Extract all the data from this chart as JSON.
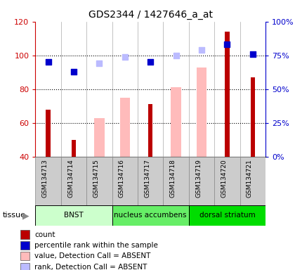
{
  "title": "GDS2344 / 1427646_a_at",
  "samples": [
    "GSM134713",
    "GSM134714",
    "GSM134715",
    "GSM134716",
    "GSM134717",
    "GSM134718",
    "GSM134719",
    "GSM134720",
    "GSM134721"
  ],
  "tissues": [
    {
      "label": "BNST",
      "start": 0,
      "end": 3,
      "color": "#ccffcc"
    },
    {
      "label": "nucleus accumbens",
      "start": 3,
      "end": 6,
      "color": "#66ee66"
    },
    {
      "label": "dorsal striatum",
      "start": 6,
      "end": 9,
      "color": "#00dd00"
    }
  ],
  "count_values": [
    68,
    50,
    null,
    null,
    71,
    null,
    null,
    114,
    87
  ],
  "rank_values": [
    70,
    63,
    null,
    null,
    70,
    null,
    null,
    83,
    76
  ],
  "absent_value_values": [
    null,
    null,
    63,
    75,
    null,
    81,
    93,
    null,
    null
  ],
  "absent_rank_values": [
    null,
    null,
    69,
    74,
    null,
    75,
    79,
    null,
    null
  ],
  "ylim_left": [
    40,
    120
  ],
  "ylim_right": [
    0,
    100
  ],
  "yticks_left": [
    40,
    60,
    80,
    100,
    120
  ],
  "yticks_right": [
    0,
    25,
    50,
    75,
    100
  ],
  "yticklabels_right": [
    "0%",
    "25%",
    "50%",
    "75%",
    "100%"
  ],
  "left_axis_color": "#cc0000",
  "right_axis_color": "#0000cc",
  "count_color": "#bb0000",
  "rank_color": "#0000cc",
  "absent_value_color": "#ffbbbb",
  "absent_rank_color": "#bbbbff",
  "grid_color": "#000000",
  "bg_color": "#ffffff"
}
